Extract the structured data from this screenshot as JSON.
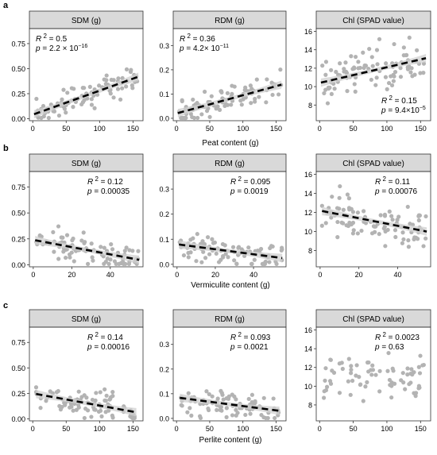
{
  "figure": {
    "rows": [
      {
        "label": "a",
        "xlabel": "Peat content (g)"
      },
      {
        "label": "b",
        "xlabel": "Vermiculite content (g)"
      },
      {
        "label": "c",
        "xlabel": "Perlite content (g)"
      }
    ]
  },
  "colors": {
    "points": "#b3b3b3",
    "fit": "#000000",
    "band": "#d0d0d0",
    "strip": "#d9d9d9",
    "frame": "#333333"
  },
  "chart_data": [
    {
      "id": "a-sdm",
      "type": "scatter",
      "title": "SDM (g)",
      "xlabel": "Peat content (g)",
      "xlim": [
        -5,
        165
      ],
      "ylim": [
        -0.02,
        0.9
      ],
      "xticks": [
        0,
        50,
        100,
        150
      ],
      "yticks": [
        0,
        0.25,
        0.5,
        0.75
      ],
      "ytick_labels": [
        "0.00",
        "0.25",
        "0.50",
        "0.75"
      ],
      "stats": {
        "r2": "0.5",
        "p": "2.2 × 10",
        "p_exp": "−16",
        "pos": "top-left"
      },
      "fit": [
        0.04,
        0.0024
      ],
      "n": 90,
      "x_range": [
        2,
        158
      ],
      "noise": 0.1,
      "seed": 11
    },
    {
      "id": "a-rdm",
      "type": "scatter",
      "title": "RDM (g)",
      "xlabel": "Peat content (g)",
      "xlim": [
        -5,
        165
      ],
      "ylim": [
        -0.01,
        0.37
      ],
      "xticks": [
        0,
        50,
        100,
        150
      ],
      "yticks": [
        0,
        0.1,
        0.2,
        0.3
      ],
      "ytick_labels": [
        "0.0",
        "0.1",
        "0.2",
        "0.3"
      ],
      "stats": {
        "r2": "0.36",
        "p": "4.2× 10",
        "p_exp": "−11",
        "pos": "top-left"
      },
      "fit": [
        0.02,
        0.00075
      ],
      "n": 90,
      "x_range": [
        2,
        158
      ],
      "noise": 0.045,
      "seed": 23
    },
    {
      "id": "a-chl",
      "type": "scatter",
      "title": "Chl (SPAD value)",
      "xlabel": "Peat content (g)",
      "xlim": [
        -5,
        165
      ],
      "ylim": [
        6.3,
        16.3
      ],
      "xticks": [
        0,
        50,
        100,
        150
      ],
      "yticks": [
        8,
        10,
        12,
        14,
        16
      ],
      "ytick_labels": [
        "8",
        "10",
        "12",
        "14",
        "16"
      ],
      "stats": {
        "r2": "0.15",
        "p": "9.4×10",
        "p_exp": "−5",
        "pos": "bottom-right"
      },
      "fit": [
        10.4,
        0.017
      ],
      "n": 90,
      "x_range": [
        2,
        158
      ],
      "noise": 1.8,
      "seed": 37
    },
    {
      "id": "b-sdm",
      "type": "scatter",
      "title": "SDM (g)",
      "xlabel": "Vermiculite content (g)",
      "xlim": [
        -2,
        57
      ],
      "ylim": [
        -0.02,
        0.9
      ],
      "xticks": [
        0,
        20,
        40
      ],
      "yticks": [
        0,
        0.25,
        0.5,
        0.75
      ],
      "ytick_labels": [
        "0.00",
        "0.25",
        "0.50",
        "0.75"
      ],
      "stats": {
        "r2": "0.12",
        "p": "0.00035",
        "p_exp": "",
        "pos": "top-right"
      },
      "fit": [
        0.24,
        -0.0035
      ],
      "n": 90,
      "x_range": [
        1,
        55
      ],
      "noise": 0.1,
      "seed": 41
    },
    {
      "id": "b-rdm",
      "type": "scatter",
      "title": "RDM (g)",
      "xlabel": "Vermiculite content (g)",
      "xlim": [
        -2,
        57
      ],
      "ylim": [
        -0.01,
        0.37
      ],
      "xticks": [
        0,
        20,
        40
      ],
      "yticks": [
        0,
        0.1,
        0.2,
        0.3
      ],
      "ytick_labels": [
        "0.0",
        "0.1",
        "0.2",
        "0.3"
      ],
      "stats": {
        "r2": "0.095",
        "p": "0.0019",
        "p_exp": "",
        "pos": "top-right"
      },
      "fit": [
        0.08,
        -0.001
      ],
      "n": 90,
      "x_range": [
        1,
        55
      ],
      "noise": 0.045,
      "seed": 53
    },
    {
      "id": "b-chl",
      "type": "scatter",
      "title": "Chl (SPAD value)",
      "xlabel": "Vermiculite content (g)",
      "xlim": [
        -2,
        57
      ],
      "ylim": [
        6.3,
        16.3
      ],
      "xticks": [
        0,
        20,
        40
      ],
      "yticks": [
        8,
        10,
        12,
        14,
        16
      ],
      "ytick_labels": [
        "8",
        "10",
        "12",
        "14",
        "16"
      ],
      "stats": {
        "r2": "0.11",
        "p": "0.00076",
        "p_exp": "",
        "pos": "top-right"
      },
      "fit": [
        12.2,
        -0.04
      ],
      "n": 90,
      "x_range": [
        1,
        55
      ],
      "noise": 1.7,
      "seed": 67
    },
    {
      "id": "c-sdm",
      "type": "scatter",
      "title": "SDM (g)",
      "xlabel": "Perlite content (g)",
      "xlim": [
        -5,
        165
      ],
      "ylim": [
        -0.02,
        0.9
      ],
      "xticks": [
        0,
        50,
        100,
        150
      ],
      "yticks": [
        0,
        0.25,
        0.5,
        0.75
      ],
      "ytick_labels": [
        "0.00",
        "0.25",
        "0.50",
        "0.75"
      ],
      "stats": {
        "r2": "0.14",
        "p": "0.00016",
        "p_exp": "",
        "pos": "top-right"
      },
      "fit": [
        0.25,
        -0.0012
      ],
      "n": 90,
      "x_range": [
        5,
        155
      ],
      "noise": 0.1,
      "seed": 71
    },
    {
      "id": "c-rdm",
      "type": "scatter",
      "title": "RDM (g)",
      "xlabel": "Perlite content (g)",
      "xlim": [
        -5,
        165
      ],
      "ylim": [
        -0.01,
        0.37
      ],
      "xticks": [
        0,
        50,
        100,
        150
      ],
      "yticks": [
        0,
        0.1,
        0.2,
        0.3
      ],
      "ytick_labels": [
        "0.0",
        "0.1",
        "0.2",
        "0.3"
      ],
      "stats": {
        "r2": "0.093",
        "p": "0.0021",
        "p_exp": "",
        "pos": "top-right"
      },
      "fit": [
        0.085,
        -0.00035
      ],
      "n": 90,
      "x_range": [
        5,
        155
      ],
      "noise": 0.045,
      "seed": 83
    },
    {
      "id": "c-chl",
      "type": "scatter",
      "title": "Chl (SPAD value)",
      "xlabel": "Perlite content (g)",
      "xlim": [
        -5,
        165
      ],
      "ylim": [
        6.3,
        16.3
      ],
      "xticks": [
        0,
        50,
        100,
        150
      ],
      "yticks": [
        8,
        10,
        12,
        14,
        16
      ],
      "ytick_labels": [
        "8",
        "10",
        "12",
        "14",
        "16"
      ],
      "stats": {
        "r2": "0.0023",
        "p": "0.63",
        "p_exp": "",
        "pos": "top-right"
      },
      "fit": null,
      "n": 75,
      "x_range": [
        5,
        155
      ],
      "noise": 1.6,
      "seed": 97,
      "base": 11
    }
  ]
}
